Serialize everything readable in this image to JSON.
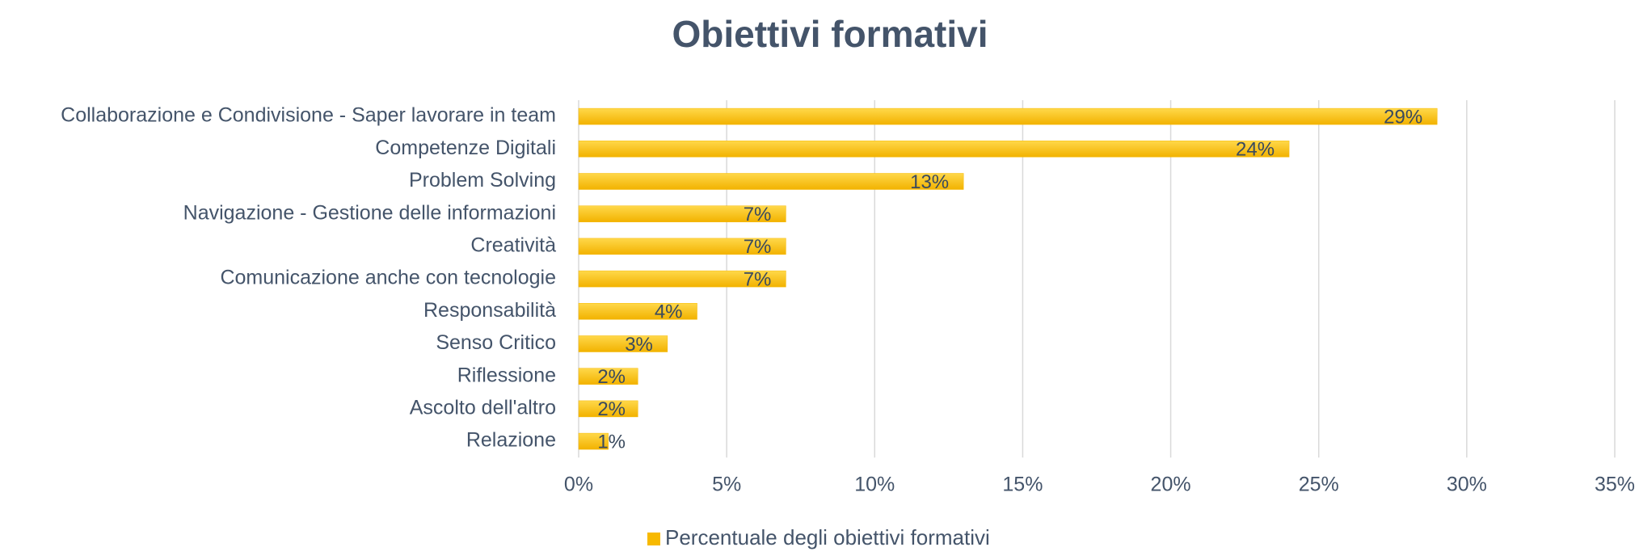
{
  "chart_data": {
    "type": "bar",
    "orientation": "horizontal",
    "title": "Obiettivi formativi",
    "categories": [
      "Collaborazione e Condivisione - Saper lavorare in team",
      "Competenze Digitali",
      "Problem Solving",
      "Navigazione - Gestione delle informazioni",
      "Creatività",
      "Comunicazione anche con tecnologie",
      "Responsabilità",
      "Senso Critico",
      "Riflessione",
      "Ascolto dell'altro",
      "Relazione"
    ],
    "series": [
      {
        "name": "Percentuale degli obiettivi formativi",
        "color": "#f7b900",
        "values": [
          29,
          24,
          13,
          7,
          7,
          7,
          4,
          3,
          2,
          2,
          1
        ],
        "value_labels": [
          "29%",
          "24%",
          "13%",
          "7%",
          "7%",
          "7%",
          "4%",
          "3%",
          "2%",
          "2%",
          "1%"
        ]
      }
    ],
    "xlim": [
      0,
      35
    ],
    "xticks": [
      {
        "value": 0,
        "label": "0%"
      },
      {
        "value": 5,
        "label": "5%"
      },
      {
        "value": 10,
        "label": "10%"
      },
      {
        "value": 15,
        "label": "15%"
      },
      {
        "value": 20,
        "label": "20%"
      },
      {
        "value": 25,
        "label": "25%"
      },
      {
        "value": 30,
        "label": "30%"
      },
      {
        "value": 35,
        "label": "35%"
      }
    ],
    "grid": true,
    "legend": "bottom"
  }
}
